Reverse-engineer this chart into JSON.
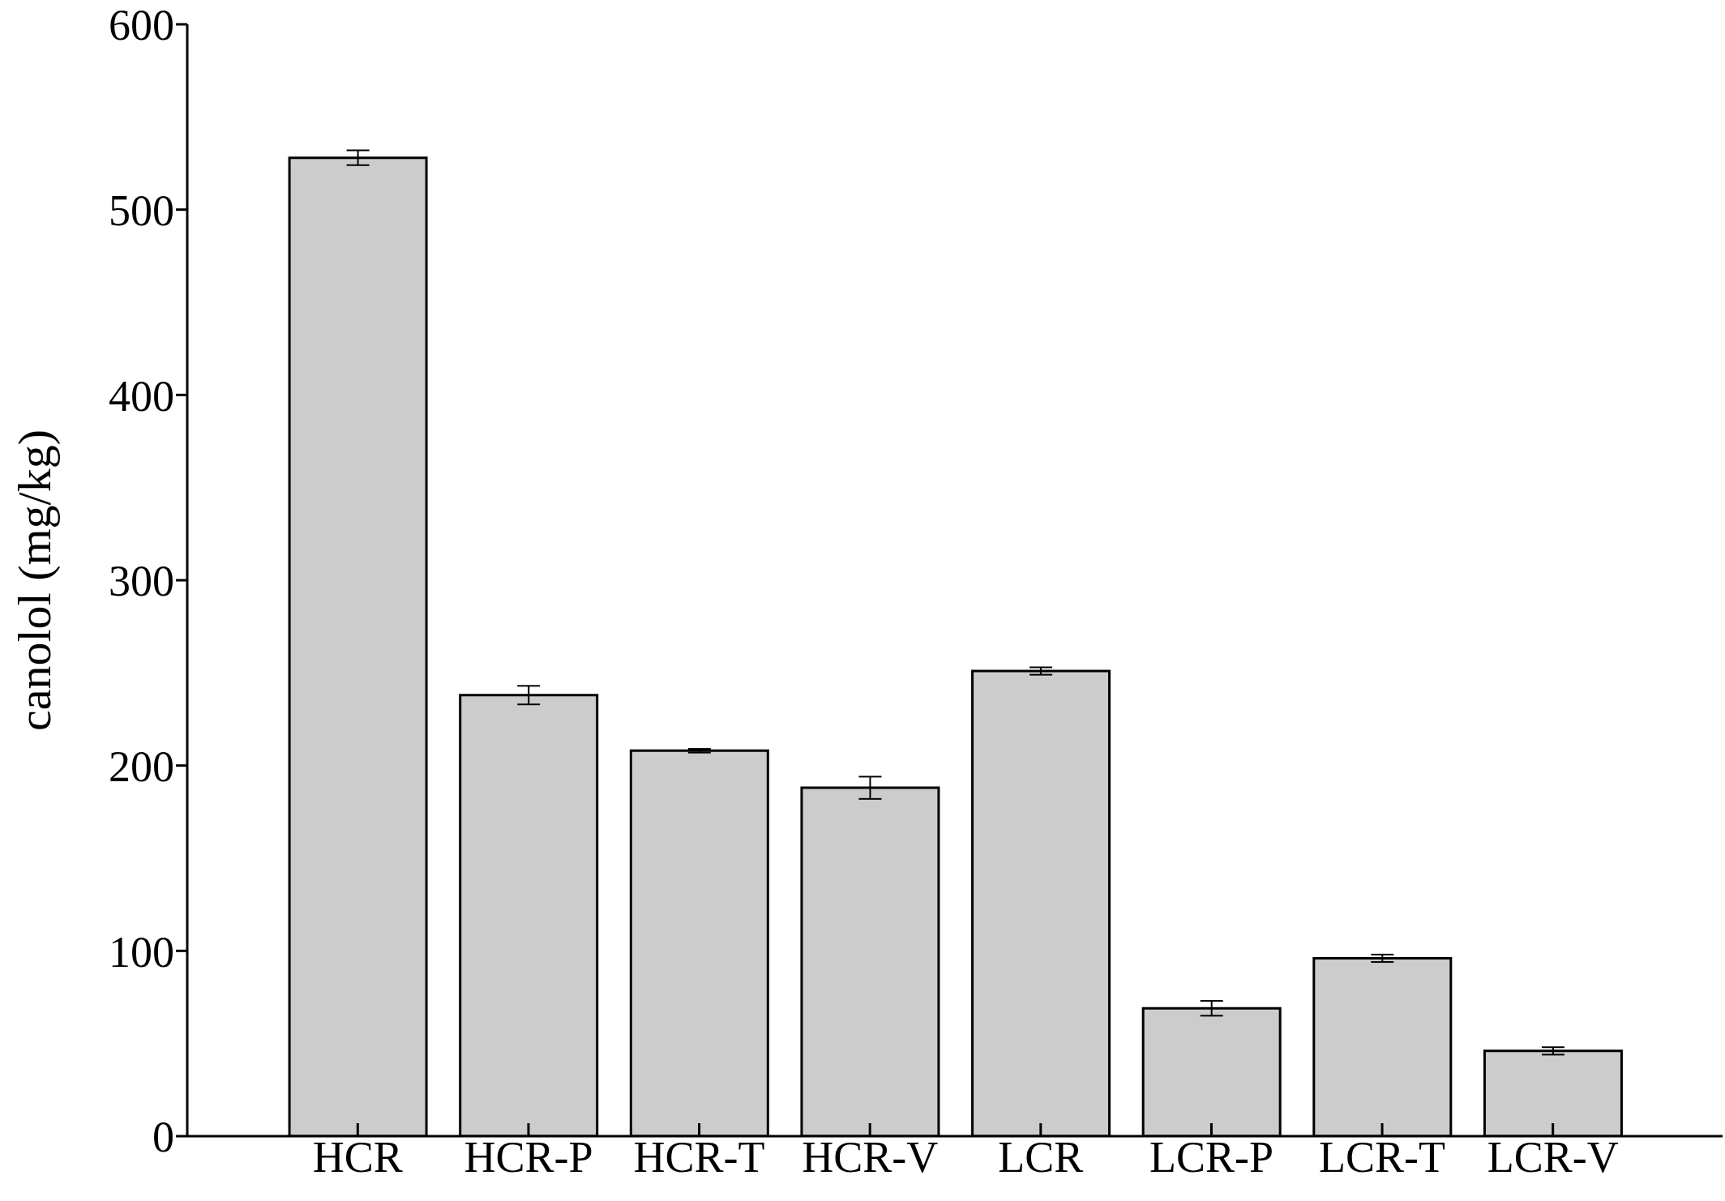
{
  "chart_data": {
    "type": "bar",
    "ylabel": "canolol (mg/kg)",
    "categories": [
      "HCR",
      "HCR-P",
      "HCR-T",
      "HCR-V",
      "LCR",
      "LCR-P",
      "LCR-T",
      "LCR-V"
    ],
    "values": [
      528,
      238,
      208,
      188,
      251,
      69,
      96,
      46
    ],
    "errors": [
      4,
      5,
      1,
      6,
      2,
      4,
      2,
      2
    ],
    "color": "#cccccc",
    "ylim": [
      0,
      600
    ],
    "yticks": [
      0,
      100,
      200,
      300,
      400,
      500,
      600
    ],
    "grid": false,
    "legend": false
  }
}
